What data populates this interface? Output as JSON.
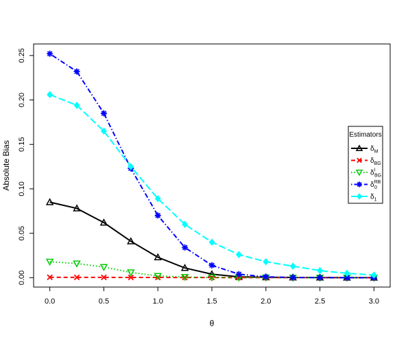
{
  "chart_data": {
    "type": "line",
    "title": "",
    "xlabel": "θ",
    "ylabel": "Absolute Bias",
    "xlim": [
      -0.15,
      3.15
    ],
    "ylim": [
      -0.0105,
      0.263
    ],
    "x_ticks": [
      "0.0",
      "0.5",
      "1.0",
      "1.5",
      "2.0",
      "2.5",
      "3.0"
    ],
    "y_ticks": [
      "0.00",
      "0.05",
      "0.10",
      "0.15",
      "0.20",
      "0.25"
    ],
    "legend_title": "Estimators",
    "legend_position": "right",
    "grid": false,
    "x": [
      0.0,
      0.25,
      0.5,
      0.75,
      1.0,
      1.25,
      1.5,
      1.75,
      2.0,
      2.25,
      2.5,
      2.75,
      3.0
    ],
    "series": [
      {
        "name_base": "δ",
        "name_sub": "M",
        "name_sup": "",
        "color": "#000000",
        "dash": "solid",
        "marker": "triangle-up",
        "values": [
          0.085,
          0.078,
          0.062,
          0.041,
          0.023,
          0.011,
          0.004,
          0.001,
          0.0005,
          0.0003,
          0.0002,
          0.0001,
          0.0001
        ]
      },
      {
        "name_base": "δ",
        "name_sub": "BG",
        "name_sup": "",
        "color": "#ff0000",
        "dash": "dashed",
        "marker": "x",
        "values": [
          0.0005,
          0.0004,
          0.0004,
          0.0003,
          0.0003,
          0.0002,
          0.0002,
          0.0001,
          0.0001,
          0.0001,
          0.0001,
          0.0,
          0.0
        ]
      },
      {
        "name_base": "δ",
        "name_sub": "BG",
        "name_sup": "I",
        "color": "#00cc00",
        "dash": "dotted",
        "marker": "triangle-down",
        "values": [
          0.018,
          0.016,
          0.012,
          0.006,
          0.002,
          0.0008,
          0.0003,
          0.0001,
          0.0001,
          0.0,
          0.0,
          0.0,
          0.0
        ]
      },
      {
        "name_base": "δ",
        "name_sub": "0",
        "name_sup": "RB",
        "color": "#0000ff",
        "dash": "dotdash",
        "marker": "asterisk",
        "values": [
          0.252,
          0.232,
          0.185,
          0.123,
          0.07,
          0.034,
          0.014,
          0.004,
          0.001,
          0.0003,
          0.0001,
          0.0,
          0.0
        ]
      },
      {
        "name_base": "δ",
        "name_sub": "1",
        "name_sup": "",
        "color": "#00ffff",
        "dash": "longdash",
        "marker": "diamond",
        "values": [
          0.206,
          0.194,
          0.165,
          0.125,
          0.089,
          0.06,
          0.04,
          0.026,
          0.018,
          0.013,
          0.008,
          0.005,
          0.003
        ]
      }
    ]
  }
}
